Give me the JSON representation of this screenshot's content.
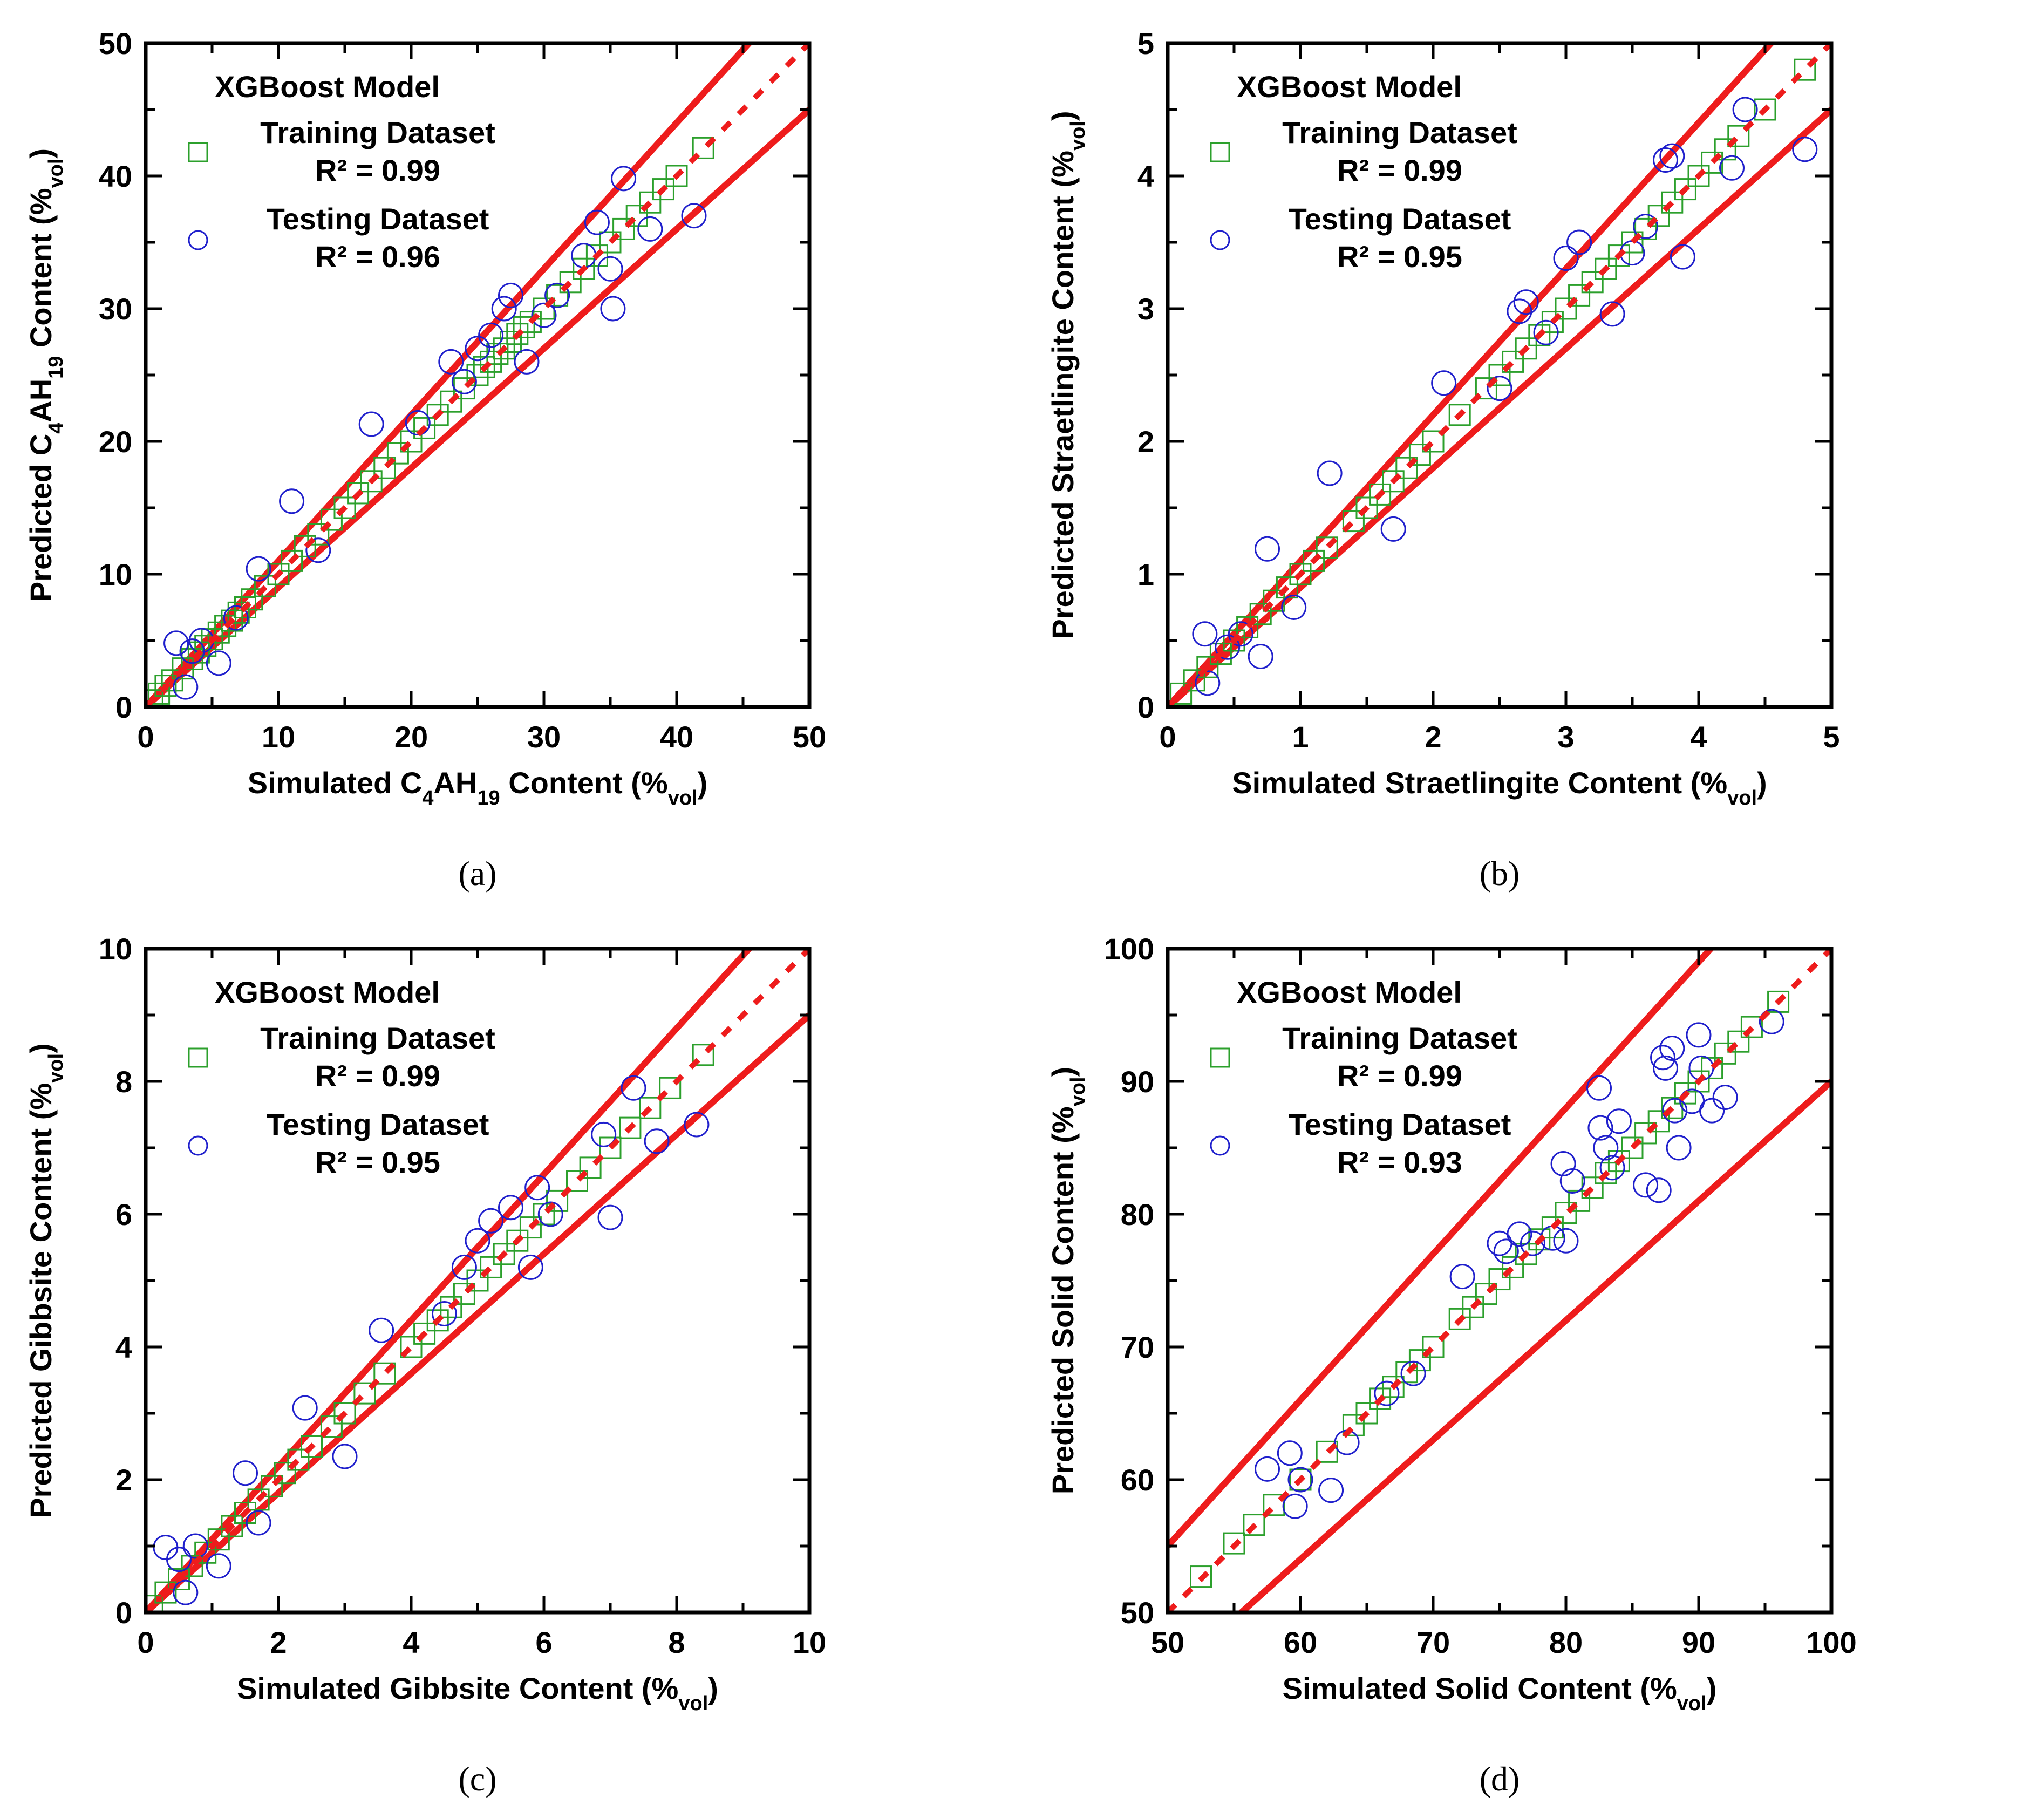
{
  "figure": {
    "colors": {
      "training": "#2ca02c",
      "testing": "#1f1fcc",
      "lines": "#ee1c1c",
      "axis": "#000000"
    }
  },
  "chart_data": [
    {
      "panel_label": "(a)",
      "type": "scatter",
      "title": "",
      "model_label": "XGBoost Model",
      "xlabel": {
        "pre": "Simulated C",
        "sub1": "4",
        "mid": "AH",
        "sub2": "19",
        "post": " Content (%",
        "sub3": "vol",
        "end": ")"
      },
      "ylabel": {
        "pre": "Predicted C",
        "sub1": "4",
        "mid": "AH",
        "sub2": "19",
        "post": " Content (%",
        "sub3": "vol",
        "end": ")"
      },
      "xlim": [
        0,
        50
      ],
      "ylim": [
        0,
        50
      ],
      "xticks": [
        0,
        10,
        20,
        30,
        40,
        50
      ],
      "yticks": [
        0,
        10,
        20,
        30,
        40,
        50
      ],
      "error_band": 0.1,
      "legend": {
        "training_label": "Training Dataset",
        "training_r2": "R² = 0.99",
        "testing_label": "Testing Dataset",
        "testing_r2": "R² = 0.96"
      },
      "series": [
        {
          "name": "Training Dataset",
          "marker": "square",
          "x": [
            0.5,
            1,
            1.5,
            2,
            2.8,
            3.5,
            4,
            4.5,
            5,
            5.5,
            6,
            6.5,
            7,
            7.5,
            8,
            9,
            10,
            11,
            12,
            13,
            14,
            15,
            16,
            17,
            18,
            19,
            20,
            21,
            22,
            23,
            24,
            25,
            25.5,
            26,
            26.5,
            27,
            27.5,
            28,
            28.5,
            29,
            30,
            31,
            32,
            33,
            34,
            35,
            36,
            37,
            38,
            39,
            40,
            42
          ],
          "y": [
            0.5,
            1,
            1.6,
            2,
            2.9,
            3.6,
            4.1,
            4.6,
            5.1,
            5.6,
            6.1,
            6.5,
            7.1,
            7.5,
            8.1,
            9.1,
            10,
            11,
            12.1,
            13,
            14.1,
            15,
            16.1,
            17,
            18,
            19.1,
            20,
            21,
            22,
            23,
            24,
            25,
            25.6,
            26,
            26.6,
            27,
            27.5,
            28.1,
            28.6,
            29,
            30,
            31,
            32,
            33,
            34,
            35,
            36,
            37,
            38,
            39,
            40,
            42.1
          ]
        },
        {
          "name": "Testing Dataset",
          "marker": "circle",
          "x": [
            2.3,
            3,
            3.5,
            4.2,
            5.5,
            6.8,
            8.5,
            11,
            13,
            17,
            20.5,
            23,
            24,
            25,
            26,
            27,
            27.5,
            28.7,
            30,
            31,
            33,
            34,
            35,
            35.2,
            36,
            38,
            41.3
          ],
          "y": [
            4.8,
            1.5,
            4.2,
            5,
            3.3,
            6.7,
            10.4,
            15.5,
            11.8,
            21.3,
            21.4,
            26,
            24.5,
            27,
            28,
            30,
            31,
            26,
            29.5,
            31,
            34,
            36.5,
            33,
            30,
            39.8,
            36,
            37
          ]
        }
      ]
    },
    {
      "panel_label": "(b)",
      "type": "scatter",
      "title": "",
      "model_label": "XGBoost Model",
      "xlabel": {
        "pre": "Simulated Straetlingite Content (%",
        "sub3": "vol",
        "end": ")"
      },
      "ylabel": {
        "pre": "Predicted Straetlingite Content (%",
        "sub3": "vol",
        "end": ")"
      },
      "xlim": [
        0,
        5
      ],
      "ylim": [
        0,
        5
      ],
      "xticks": [
        0,
        1,
        2,
        3,
        4,
        5
      ],
      "yticks": [
        0,
        1,
        2,
        3,
        4,
        5
      ],
      "error_band": 0.1,
      "legend": {
        "training_label": "Training Dataset",
        "training_r2": "R² = 0.99",
        "testing_label": "Testing Dataset",
        "testing_r2": "R² = 0.95"
      },
      "series": [
        {
          "name": "Training Dataset",
          "marker": "square",
          "x": [
            0.1,
            0.2,
            0.3,
            0.4,
            0.5,
            0.6,
            0.7,
            0.8,
            0.9,
            1,
            1.1,
            1.2,
            1.4,
            1.5,
            1.6,
            1.7,
            1.8,
            1.9,
            2,
            2.2,
            2.4,
            2.5,
            2.6,
            2.7,
            2.8,
            2.9,
            3,
            3.1,
            3.2,
            3.3,
            3.4,
            3.5,
            3.6,
            3.7,
            3.8,
            3.9,
            4,
            4.1,
            4.2,
            4.3,
            4.5,
            4.8
          ],
          "y": [
            0.1,
            0.2,
            0.3,
            0.4,
            0.5,
            0.6,
            0.7,
            0.8,
            0.9,
            1,
            1.1,
            1.2,
            1.4,
            1.5,
            1.6,
            1.7,
            1.8,
            1.9,
            2,
            2.2,
            2.4,
            2.5,
            2.6,
            2.7,
            2.8,
            2.9,
            3,
            3.1,
            3.2,
            3.3,
            3.4,
            3.5,
            3.6,
            3.7,
            3.8,
            3.9,
            4,
            4.1,
            4.2,
            4.3,
            4.5,
            4.8
          ]
        },
        {
          "name": "Testing Dataset",
          "marker": "circle",
          "x": [
            0.28,
            0.3,
            0.45,
            0.55,
            0.7,
            0.75,
            0.95,
            1.22,
            1.7,
            2.08,
            2.5,
            2.65,
            2.7,
            2.85,
            3,
            3.1,
            3.35,
            3.5,
            3.6,
            3.75,
            3.8,
            3.88,
            4.25,
            4.35,
            4.8
          ],
          "y": [
            0.55,
            0.18,
            0.45,
            0.55,
            0.38,
            1.19,
            0.75,
            1.76,
            1.34,
            2.44,
            2.4,
            2.98,
            3.05,
            2.82,
            3.38,
            3.5,
            2.96,
            3.42,
            3.62,
            4.12,
            4.15,
            3.39,
            4.06,
            4.5,
            4.2
          ]
        }
      ]
    },
    {
      "panel_label": "(c)",
      "type": "scatter",
      "title": "",
      "model_label": "XGBoost Model",
      "xlabel": {
        "pre": "Simulated Gibbsite Content (%",
        "sub3": "vol",
        "end": ")"
      },
      "ylabel": {
        "pre": "Predicted Gibbsite Content (%",
        "sub3": "vol",
        "end": ")"
      },
      "xlim": [
        0,
        10
      ],
      "ylim": [
        0,
        10
      ],
      "xticks": [
        0,
        2,
        4,
        6,
        8,
        10
      ],
      "yticks": [
        0,
        2,
        4,
        6,
        8,
        10
      ],
      "error_band": 0.1,
      "legend": {
        "training_label": "Training Dataset",
        "training_r2": "R² = 0.99",
        "testing_label": "Testing Dataset",
        "testing_r2": "R² = 0.95"
      },
      "series": [
        {
          "name": "Training Dataset",
          "marker": "square",
          "x": [
            0.1,
            0.3,
            0.5,
            0.7,
            0.9,
            1.1,
            1.3,
            1.5,
            1.7,
            1.9,
            2.1,
            2.3,
            2.5,
            2.8,
            3,
            3.3,
            3.6,
            4,
            4.2,
            4.4,
            4.6,
            4.8,
            5,
            5.2,
            5.4,
            5.6,
            5.8,
            6,
            6.2,
            6.5,
            6.7,
            7,
            7.3,
            7.6,
            7.9,
            8.4
          ],
          "y": [
            0.1,
            0.3,
            0.5,
            0.7,
            0.9,
            1.1,
            1.3,
            1.5,
            1.7,
            1.9,
            2.1,
            2.3,
            2.5,
            2.8,
            3,
            3.3,
            3.6,
            4,
            4.2,
            4.4,
            4.6,
            4.8,
            5,
            5.2,
            5.4,
            5.6,
            5.8,
            6,
            6.2,
            6.5,
            6.7,
            7,
            7.3,
            7.6,
            7.9,
            8.4
          ]
        },
        {
          "name": "Testing Dataset",
          "marker": "circle",
          "x": [
            0.3,
            0.5,
            0.6,
            0.75,
            1.1,
            1.5,
            1.7,
            2.4,
            3,
            3.55,
            4.5,
            4.8,
            5,
            5.2,
            5.5,
            5.8,
            5.9,
            6.1,
            6.9,
            7,
            7.35,
            7.7,
            8.3
          ],
          "y": [
            0.98,
            0.8,
            0.3,
            1,
            0.7,
            2.1,
            1.35,
            3.08,
            2.35,
            4.25,
            4.5,
            5.2,
            5.6,
            5.9,
            6.1,
            5.2,
            6.4,
            6,
            7.2,
            5.95,
            7.9,
            7.1,
            7.35
          ]
        }
      ]
    },
    {
      "panel_label": "(d)",
      "type": "scatter",
      "title": "",
      "model_label": "XGBoost Model",
      "xlabel": {
        "pre": "Simulated Solid Content (%",
        "sub3": "vol",
        "end": ")"
      },
      "ylabel": {
        "pre": "Predicted Solid Content (%",
        "sub3": "vol",
        "end": ")"
      },
      "xlim": [
        50,
        100
      ],
      "ylim": [
        50,
        100
      ],
      "xticks": [
        50,
        60,
        70,
        80,
        90,
        100
      ],
      "yticks": [
        50,
        60,
        70,
        80,
        90,
        100
      ],
      "error_band": 0.1,
      "legend": {
        "training_label": "Training Dataset",
        "training_r2": "R² = 0.99",
        "testing_label": "Testing Dataset",
        "testing_r2": "R² = 0.93"
      },
      "series": [
        {
          "name": "Training Dataset",
          "marker": "square",
          "x": [
            52.5,
            55,
            56.5,
            58,
            60,
            62,
            64,
            65,
            66,
            67,
            68,
            69,
            70,
            72,
            73,
            74,
            75,
            76,
            77,
            78,
            79,
            80,
            81,
            82,
            83,
            84,
            85,
            86,
            87,
            88,
            89,
            90,
            91,
            92,
            93,
            94,
            96
          ],
          "y": [
            52.7,
            55.2,
            56.6,
            58.1,
            60,
            62.1,
            64.1,
            65,
            66.1,
            67,
            68.1,
            69,
            70,
            72.1,
            73,
            74,
            75.1,
            76,
            77,
            78.1,
            79,
            80.1,
            81,
            82,
            83.1,
            84,
            85,
            86.1,
            87,
            88,
            89.1,
            90,
            91,
            92.1,
            93,
            94.1,
            96
          ]
        },
        {
          "name": "Testing Dataset",
          "marker": "circle",
          "x": [
            57.5,
            59.2,
            59.6,
            60,
            62.3,
            63.5,
            66.5,
            68.5,
            72.2,
            75,
            75.5,
            76.5,
            77.5,
            79,
            79.8,
            80,
            80.5,
            82.5,
            82.6,
            83,
            83.5,
            84,
            86,
            87,
            87.3,
            87.5,
            88,
            88.2,
            88.5,
            89.5,
            90,
            90.2,
            91,
            92,
            95.5
          ],
          "y": [
            60.8,
            62,
            58,
            60,
            59.2,
            62.8,
            66.5,
            68,
            75.3,
            77.8,
            77.2,
            78.5,
            77.8,
            78.2,
            83.8,
            78,
            82.5,
            89.5,
            86.5,
            85,
            83.5,
            87,
            82.2,
            81.8,
            91.8,
            91,
            92.5,
            87.8,
            85,
            88.5,
            93.5,
            91,
            87.8,
            88.8,
            94.5
          ]
        }
      ]
    }
  ]
}
